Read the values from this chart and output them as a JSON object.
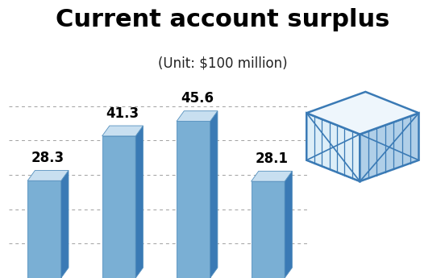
{
  "title": "Current account surplus",
  "subtitle": "(Unit: $100 million)",
  "values": [
    28.3,
    41.3,
    45.6,
    28.1
  ],
  "bar_color_front": "#7aafd4",
  "bar_color_side": "#3a7ab5",
  "bar_color_top": "#c8dff0",
  "grid_color": "#888888",
  "background_color": "#ffffff",
  "title_fontsize": 22,
  "subtitle_fontsize": 12,
  "label_fontsize": 12,
  "ylim": [
    0,
    55
  ],
  "grid_values": [
    10,
    20,
    30,
    40,
    50
  ],
  "box_stroke": "#3a7ab5",
  "box_fill_front": "#ddeef8",
  "box_fill_side": "#b0cfe8",
  "box_fill_top": "#eef6fc"
}
